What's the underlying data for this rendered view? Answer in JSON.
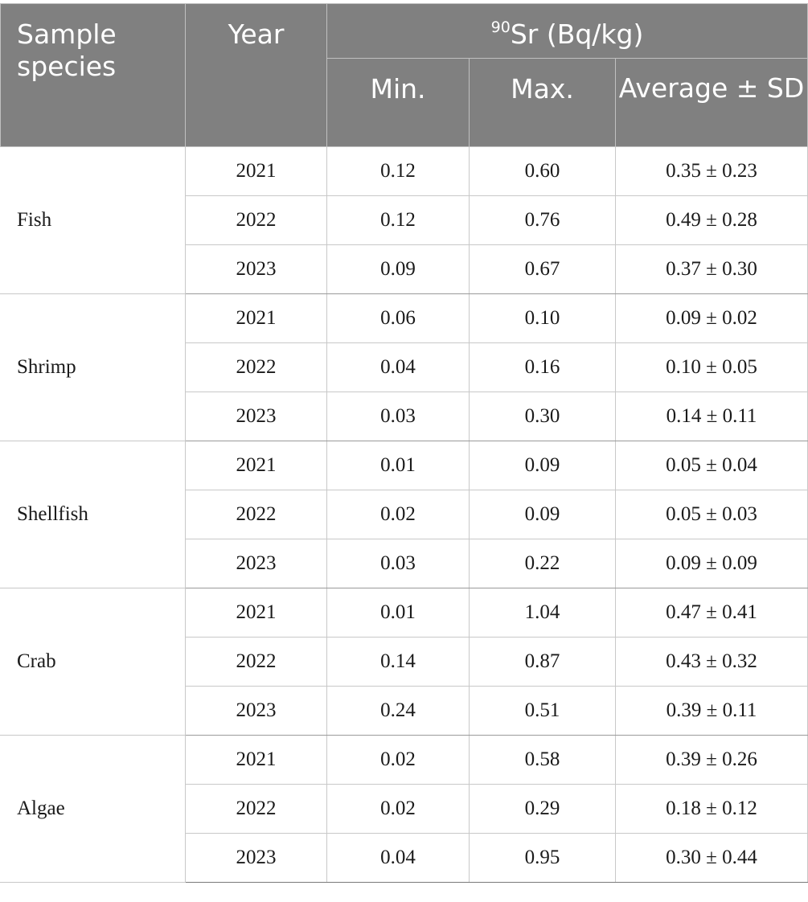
{
  "header": {
    "species_label": "Sample species",
    "year_label": "Year",
    "group_isotope": "90",
    "group_rest": "Sr (Bq/kg)",
    "min_label": "Min.",
    "max_label": "Max.",
    "avg_label": "Average ± SD"
  },
  "groups": [
    {
      "species": "Fish",
      "rows": [
        {
          "year": "2021",
          "min": "0.12",
          "max": "0.60",
          "avg": "0.35 ± 0.23"
        },
        {
          "year": "2022",
          "min": "0.12",
          "max": "0.76",
          "avg": "0.49 ± 0.28"
        },
        {
          "year": "2023",
          "min": "0.09",
          "max": "0.67",
          "avg": "0.37 ± 0.30"
        }
      ]
    },
    {
      "species": "Shrimp",
      "rows": [
        {
          "year": "2021",
          "min": "0.06",
          "max": "0.10",
          "avg": "0.09 ± 0.02"
        },
        {
          "year": "2022",
          "min": "0.04",
          "max": "0.16",
          "avg": "0.10 ± 0.05"
        },
        {
          "year": "2023",
          "min": "0.03",
          "max": "0.30",
          "avg": "0.14 ± 0.11"
        }
      ]
    },
    {
      "species": "Shellfish",
      "rows": [
        {
          "year": "2021",
          "min": "0.01",
          "max": "0.09",
          "avg": "0.05 ± 0.04"
        },
        {
          "year": "2022",
          "min": "0.02",
          "max": "0.09",
          "avg": "0.05 ± 0.03"
        },
        {
          "year": "2023",
          "min": "0.03",
          "max": "0.22",
          "avg": "0.09 ± 0.09"
        }
      ]
    },
    {
      "species": "Crab",
      "rows": [
        {
          "year": "2021",
          "min": "0.01",
          "max": "1.04",
          "avg": "0.47 ± 0.41"
        },
        {
          "year": "2022",
          "min": "0.14",
          "max": "0.87",
          "avg": "0.43 ± 0.32"
        },
        {
          "year": "2023",
          "min": "0.24",
          "max": "0.51",
          "avg": "0.39 ± 0.11"
        }
      ]
    },
    {
      "species": "Algae",
      "rows": [
        {
          "year": "2021",
          "min": "0.02",
          "max": "0.58",
          "avg": "0.39 ± 0.26"
        },
        {
          "year": "2022",
          "min": "0.02",
          "max": "0.29",
          "avg": "0.18 ± 0.12"
        },
        {
          "year": "2023",
          "min": "0.04",
          "max": "0.95",
          "avg": "0.30 ± 0.44"
        }
      ]
    }
  ]
}
